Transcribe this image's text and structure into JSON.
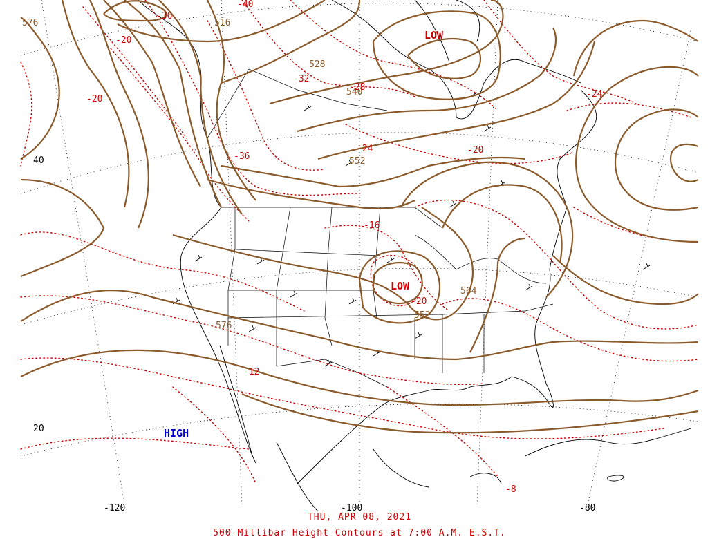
{
  "caption": {
    "date": "THU, APR 08, 2021",
    "title": "500-Millibar Height Contours at 7:00 A.M. E.S.T."
  },
  "colors": {
    "height_contour": "#8b5a2b",
    "temperature_contour": "#cc0000",
    "low_label": "#cc0000",
    "high_label": "#0000cc",
    "coastline": "#000000",
    "grid": "#000000"
  },
  "map": {
    "latitude_labels": [
      "40",
      "20"
    ],
    "longitude_labels": [
      "-120",
      "-100",
      "-80"
    ],
    "pressure_systems": [
      {
        "type": "low",
        "label": "LOW",
        "region": "Hudson Bay"
      },
      {
        "type": "low",
        "label": "LOW",
        "region": "Illinois / Wisconsin"
      },
      {
        "type": "high",
        "label": "HIGH",
        "region": "Eastern Pacific"
      }
    ],
    "height_labels_dam": [
      "576",
      "516",
      "528",
      "540",
      "552",
      "564",
      "552",
      "576"
    ],
    "temperature_labels_c": [
      "-36",
      "-20",
      "-20",
      "-40",
      "-32",
      "-28",
      "-24",
      "-24",
      "-20",
      "-36",
      "-16",
      "-20",
      "-12",
      "-8"
    ]
  }
}
